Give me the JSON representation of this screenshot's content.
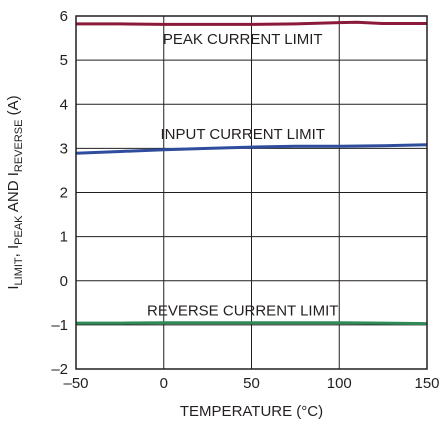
{
  "chart_data": {
    "type": "line",
    "title": "",
    "xlabel": "TEMPERATURE (°C)",
    "ylabel": {
      "parts": [
        {
          "text": "I",
          "sub": false
        },
        {
          "text": "LIMIT",
          "sub": true
        },
        {
          "text": ", I",
          "sub": false
        },
        {
          "text": "PEAK",
          "sub": true
        },
        {
          "text": " AND I",
          "sub": false
        },
        {
          "text": "REVERSE",
          "sub": true
        },
        {
          "text": " (A)",
          "sub": false
        }
      ]
    },
    "xlim": [
      -50,
      150
    ],
    "ylim": [
      -2,
      6
    ],
    "xticks": [
      -50,
      0,
      50,
      100,
      150
    ],
    "xtick_labels": [
      "–50",
      "0",
      "50",
      "100",
      "150"
    ],
    "yticks": [
      -2,
      -1,
      0,
      1,
      2,
      3,
      4,
      5,
      6
    ],
    "ytick_labels": [
      "–2",
      "–1",
      "0",
      "1",
      "2",
      "3",
      "4",
      "5",
      "6"
    ],
    "grid": true,
    "series": [
      {
        "label": "PEAK CURRENT LIMIT",
        "color": "#8b1a3a",
        "x": [
          -50,
          -25,
          0,
          25,
          50,
          75,
          100,
          110,
          125,
          150
        ],
        "y": [
          5.82,
          5.82,
          5.81,
          5.81,
          5.81,
          5.82,
          5.85,
          5.86,
          5.83,
          5.83
        ],
        "label_at": [
          45,
          5.5
        ]
      },
      {
        "label": "INPUT CURRENT LIMIT",
        "color": "#2e4d9c",
        "x": [
          -50,
          -25,
          0,
          25,
          50,
          75,
          100,
          125,
          150
        ],
        "y": [
          2.89,
          2.93,
          2.97,
          3.0,
          3.03,
          3.05,
          3.05,
          3.06,
          3.08
        ],
        "label_at": [
          45,
          3.35
        ]
      },
      {
        "label": "REVERSE CURRENT LIMIT",
        "color": "#2e8b57",
        "x": [
          -50,
          -25,
          0,
          25,
          50,
          75,
          100,
          125,
          150
        ],
        "y": [
          -0.96,
          -0.96,
          -0.95,
          -0.95,
          -0.95,
          -0.95,
          -0.95,
          -0.96,
          -0.97
        ],
        "label_at": [
          45,
          -0.65
        ]
      }
    ]
  }
}
